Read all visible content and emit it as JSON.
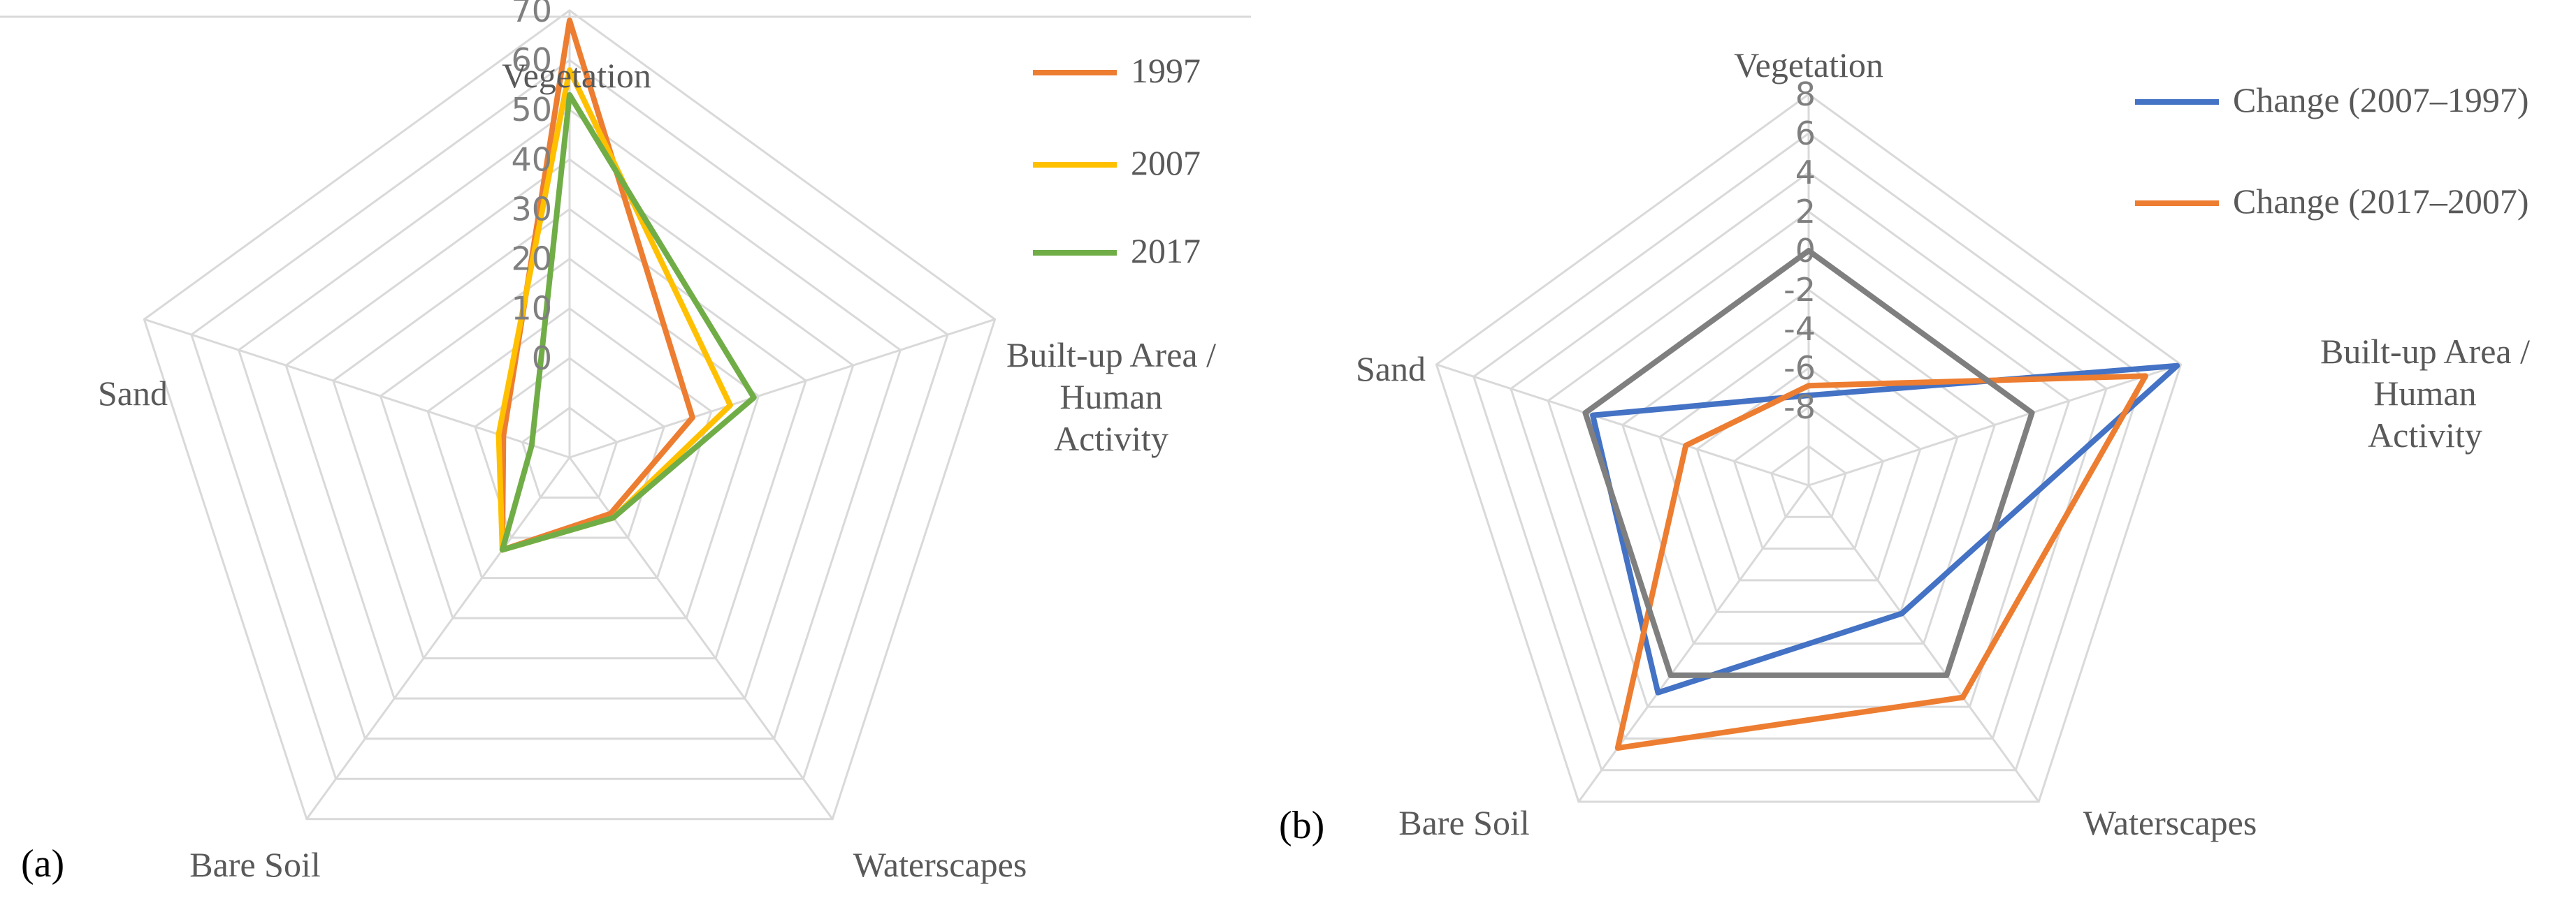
{
  "chart_data": [
    {
      "type": "radar",
      "panel_label": "(a)",
      "axes": [
        "Vegetation",
        "Built-up Area / Human Activity",
        "Waterscapes",
        "Bare Soil",
        "Sand"
      ],
      "axis_label_lines": [
        [
          "Vegetation"
        ],
        [
          "Built-up Area /",
          "Human",
          "Activity"
        ],
        [
          "Waterscapes"
        ],
        [
          "Bare Soil"
        ],
        [
          "Sand"
        ]
      ],
      "rlim": [
        -20,
        70
      ],
      "ticks": [
        -20,
        -10,
        0,
        10,
        20,
        30,
        40,
        50,
        60,
        70
      ],
      "tick_labels_shown": [
        "0",
        "10",
        "20",
        "30",
        "40",
        "50",
        "60",
        "70"
      ],
      "series": [
        {
          "name": "1997",
          "color": "#ED7D31",
          "values": [
            68,
            6,
            -6,
            3,
            -6
          ]
        },
        {
          "name": "2007",
          "color": "#FFC000",
          "values": [
            58,
            14,
            -5,
            3,
            -5
          ]
        },
        {
          "name": "2017",
          "color": "#70AD47",
          "values": [
            53,
            19,
            -5,
            3,
            -12
          ]
        }
      ],
      "grid": true,
      "legend": "top-right"
    },
    {
      "type": "radar",
      "panel_label": "(b)",
      "axes": [
        "Vegetation",
        "Built-up Area / Human Activity",
        "Waterscapes",
        "Bare Soil",
        "Sand"
      ],
      "axis_label_lines": [
        [
          "Vegetation"
        ],
        [
          "Built-up Area /",
          "Human",
          "Activity"
        ],
        [
          "Waterscapes"
        ],
        [
          "Bare Soil"
        ],
        [
          "Sand"
        ]
      ],
      "rlim": [
        -12,
        8
      ],
      "ticks": [
        -12,
        -10,
        -8,
        -6,
        -4,
        -2,
        0,
        2,
        4,
        6,
        8
      ],
      "tick_labels_shown": [
        "8",
        "6",
        "4",
        "2",
        "0",
        "-2",
        "-4",
        "-6",
        "-8"
      ],
      "series": [
        {
          "name": "Change (2007–1997)",
          "color": "#4472C4",
          "values": [
            -7.4,
            7.8,
            -3.9,
            1.1,
            -0.4
          ]
        },
        {
          "name": "Change (2017–2007)",
          "color": "#ED7D31",
          "values": [
            -6.9,
            6.1,
            1.4,
            4.6,
            -5.4
          ]
        },
        {
          "name": "",
          "color": "#7F7F7F",
          "values": [
            0,
            0,
            0,
            0,
            0
          ]
        }
      ],
      "grid": true,
      "legend": "top-right"
    }
  ]
}
